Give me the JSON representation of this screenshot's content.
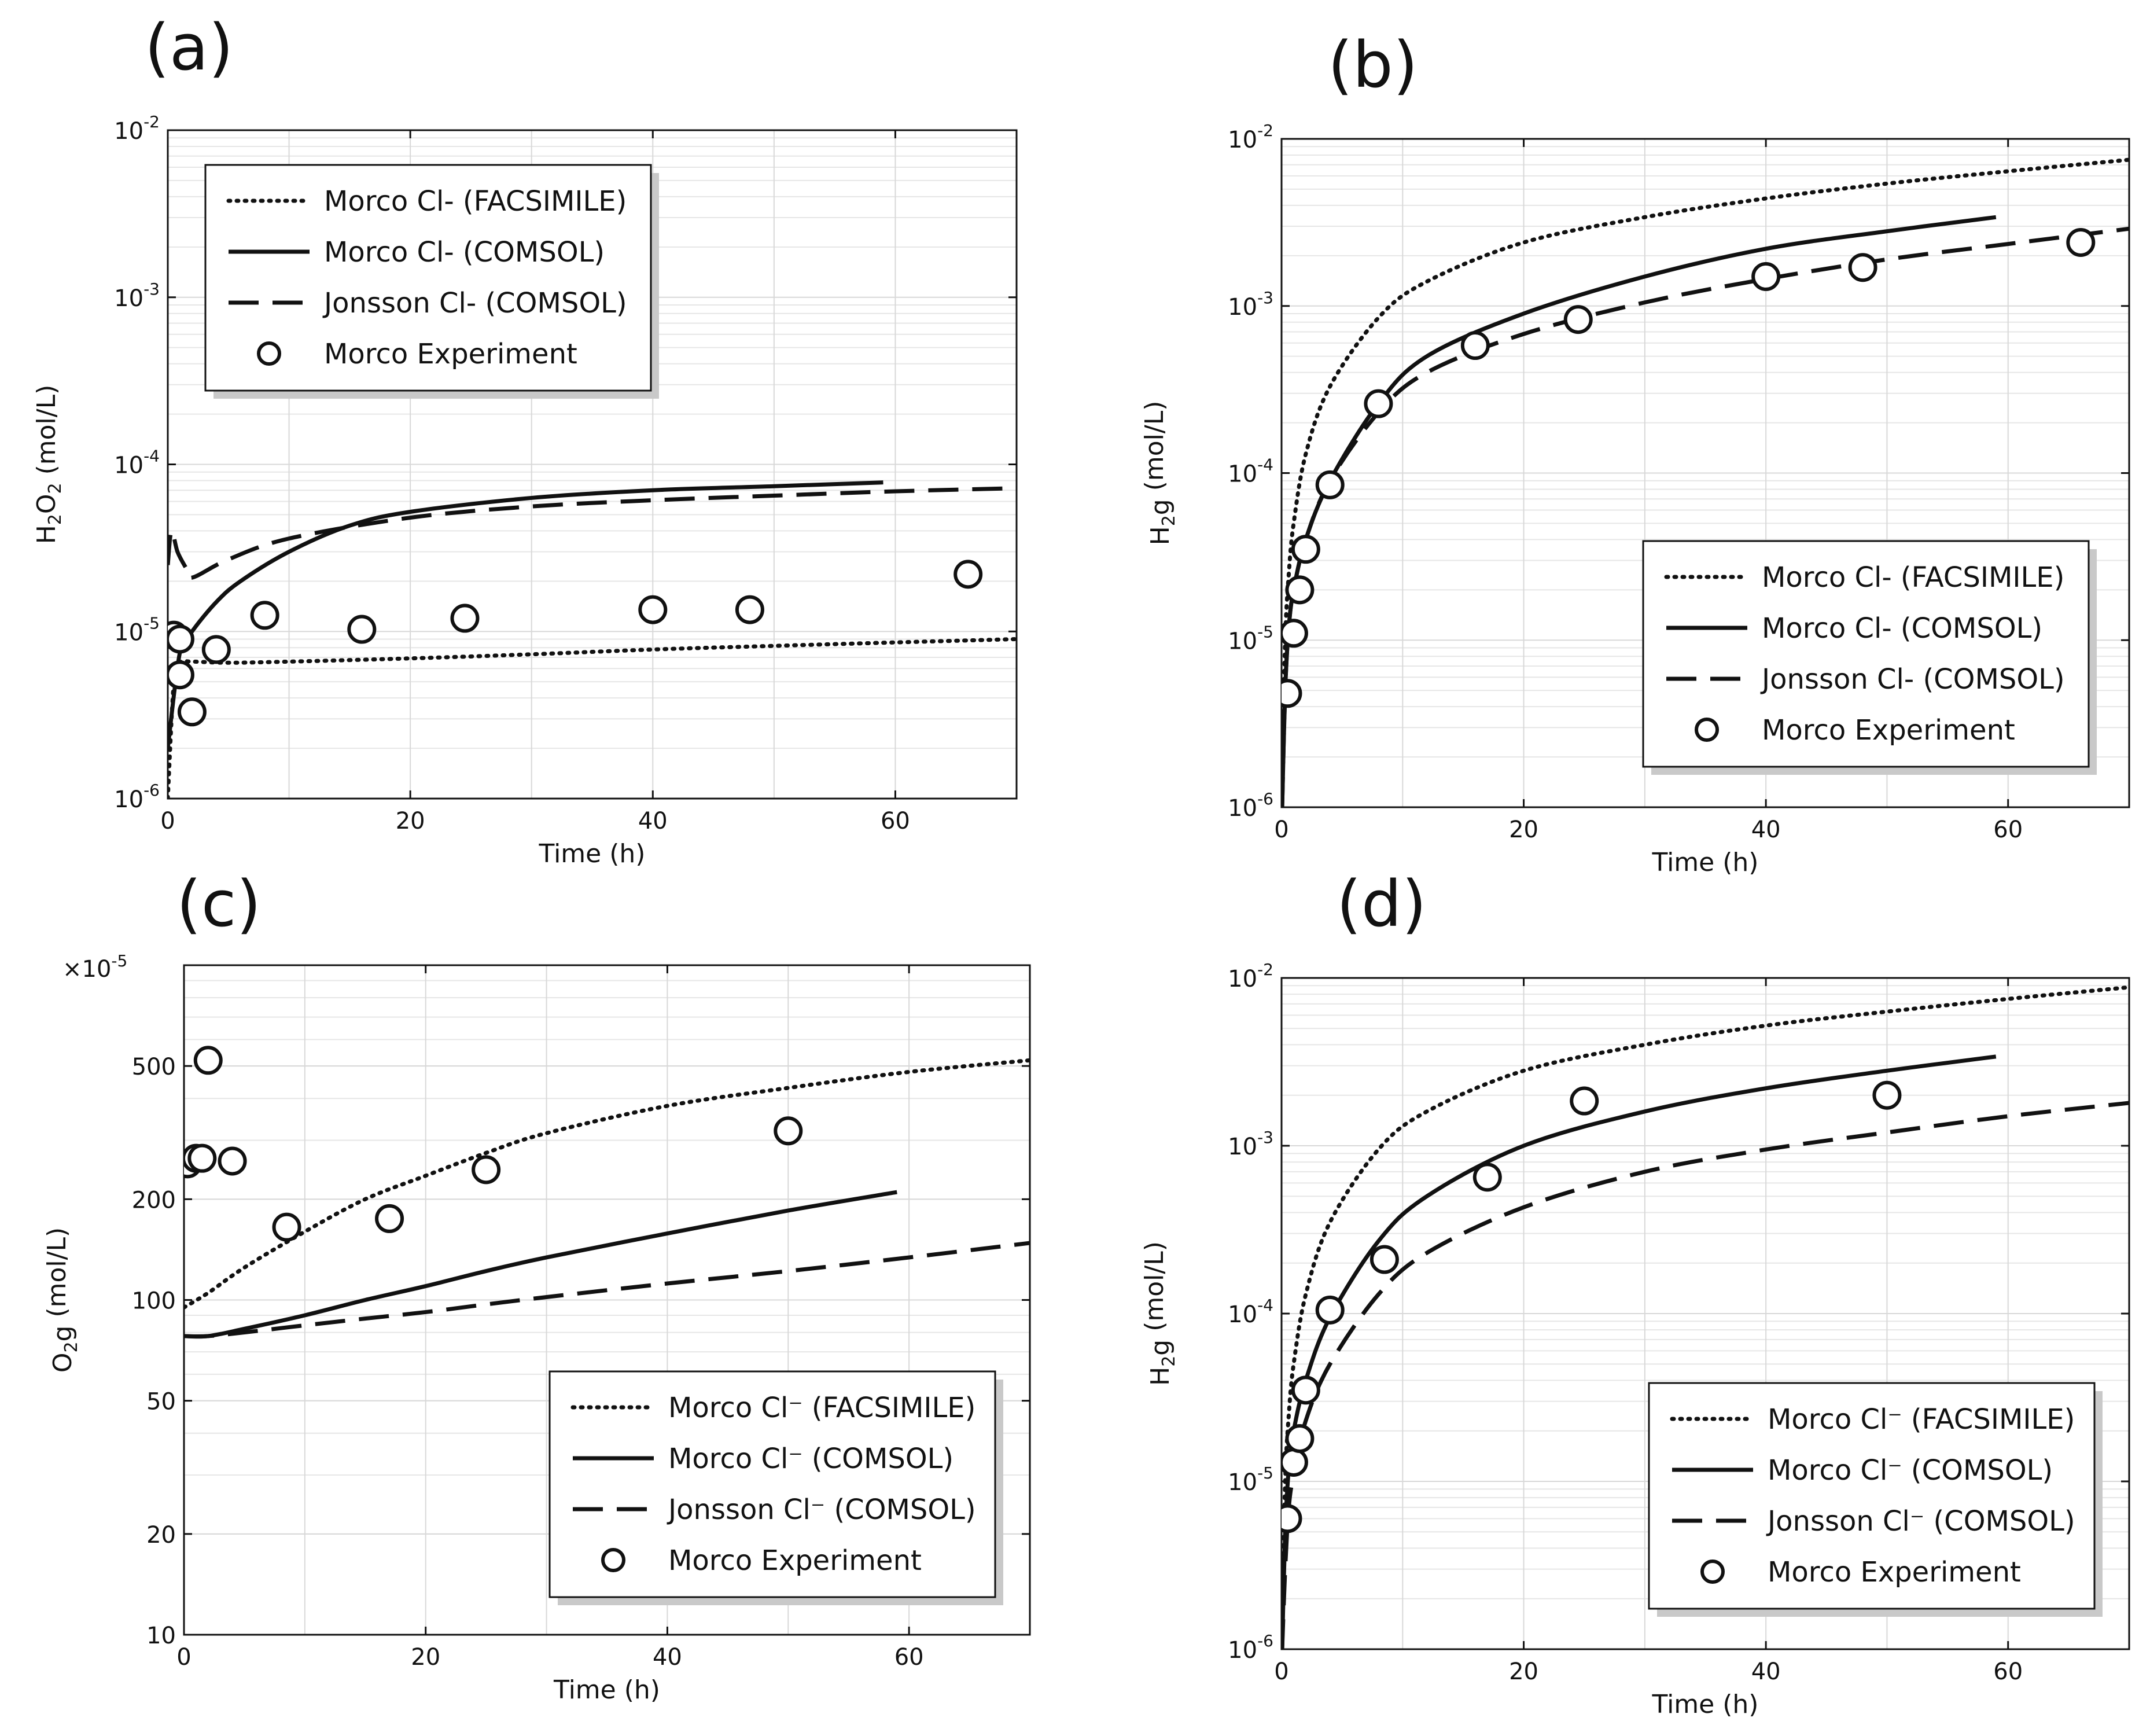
{
  "chart_data": [
    {
      "id": "a",
      "type": "line",
      "panel_label": "(a)",
      "xlabel": "Time (h)",
      "ylabel_main": "H",
      "ylabel_sub1": "2",
      "ylabel_mid": "O",
      "ylabel_sub2": "2",
      "ylabel_tail": " (mol/L)",
      "yscale": "log",
      "xlim": [
        0,
        70
      ],
      "ylim": [
        1e-06,
        0.01
      ],
      "xticks": [
        0,
        20,
        40,
        60
      ],
      "xtick_labels": [
        "0",
        "20",
        "40",
        "60"
      ],
      "yticks": [
        1e-06,
        1e-05,
        0.0001,
        0.001,
        0.01
      ],
      "ytick_labels": [
        [
          "10",
          "-6"
        ],
        [
          "10",
          "-5"
        ],
        [
          "10",
          "-4"
        ],
        [
          "10",
          "-3"
        ],
        [
          "10",
          "-2"
        ]
      ],
      "legend_position": "top-left",
      "series": [
        {
          "name": "Morco Cl- (FACSIMILE)",
          "style": "dotted",
          "x": [
            0,
            0.5,
            1,
            2,
            5,
            10,
            20,
            30,
            40,
            50,
            60,
            70
          ],
          "y": [
            1e-06,
            5e-06,
            6.5e-06,
            6.6e-06,
            6.5e-06,
            6.6e-06,
            6.9e-06,
            7.3e-06,
            7.8e-06,
            8.2e-06,
            8.6e-06,
            9e-06
          ]
        },
        {
          "name": "Morco Cl- (COMSOL)",
          "style": "solid",
          "x": [
            0,
            1,
            2,
            4,
            6,
            10,
            15,
            20,
            30,
            40,
            50,
            59
          ],
          "y": [
            2e-06,
            7.5e-06,
            1e-05,
            1.5e-05,
            2e-05,
            3e-05,
            4.3e-05,
            5.2e-05,
            6.3e-05,
            7e-05,
            7.4e-05,
            7.8e-05
          ]
        },
        {
          "name": "Jonsson Cl- (COMSOL)",
          "style": "dashed",
          "x": [
            0,
            0.3,
            0.8,
            1.5,
            2,
            5,
            10,
            20,
            30,
            40,
            50,
            60,
            70
          ],
          "y": [
            2.5e-05,
            4e-05,
            3e-05,
            2.4e-05,
            2.1e-05,
            2.7e-05,
            3.6e-05,
            4.8e-05,
            5.6e-05,
            6.1e-05,
            6.5e-05,
            6.9e-05,
            7.2e-05
          ]
        },
        {
          "name": "Morco Experiment",
          "style": "marker",
          "x": [
            0.5,
            1,
            1,
            2,
            4,
            8,
            16,
            24.5,
            40,
            48,
            66
          ],
          "y": [
            9.5e-06,
            9e-06,
            5.5e-06,
            3.3e-06,
            7.8e-06,
            1.25e-05,
            1.03e-05,
            1.2e-05,
            1.35e-05,
            1.35e-05,
            2.2e-05
          ]
        }
      ]
    },
    {
      "id": "b",
      "type": "line",
      "panel_label": "(b)",
      "xlabel": "Time (h)",
      "ylabel_main": "H",
      "ylabel_sub1": "2",
      "ylabel_mid": "g",
      "ylabel_sub2": "",
      "ylabel_tail": " (mol/L)",
      "yscale": "log",
      "xlim": [
        0,
        70
      ],
      "ylim": [
        1e-06,
        0.01
      ],
      "xticks": [
        0,
        20,
        40,
        60
      ],
      "xtick_labels": [
        "0",
        "20",
        "40",
        "60"
      ],
      "yticks": [
        1e-06,
        1e-05,
        0.0001,
        0.001,
        0.01
      ],
      "ytick_labels": [
        [
          "10",
          "-6"
        ],
        [
          "10",
          "-5"
        ],
        [
          "10",
          "-4"
        ],
        [
          "10",
          "-3"
        ],
        [
          "10",
          "-2"
        ]
      ],
      "legend_position": "bottom-right",
      "series": [
        {
          "name": "Morco Cl- (FACSIMILE)",
          "style": "dotted",
          "x": [
            0.05,
            0.3,
            0.6,
            1,
            2,
            4,
            8,
            12,
            20,
            30,
            40,
            50,
            60,
            70
          ],
          "y": [
            1.5e-06,
            1e-05,
            2.5e-05,
            5e-05,
            0.00013,
            0.00033,
            0.00085,
            0.0014,
            0.0024,
            0.0034,
            0.0044,
            0.0054,
            0.0064,
            0.0075
          ]
        },
        {
          "name": "Morco Cl- (COMSOL)",
          "style": "solid",
          "x": [
            0.05,
            0.3,
            0.6,
            1,
            2,
            4,
            8,
            12,
            20,
            30,
            40,
            50,
            59
          ],
          "y": [
            1e-06,
            5e-06,
            1.2e-05,
            2e-05,
            4e-05,
            9e-05,
            0.00026,
            0.0005,
            0.0009,
            0.0015,
            0.0022,
            0.0028,
            0.0034
          ]
        },
        {
          "name": "Jonsson Cl- (COMSOL)",
          "style": "dashed",
          "x": [
            0.05,
            0.3,
            0.6,
            1,
            2,
            4,
            8,
            12,
            20,
            30,
            40,
            50,
            60,
            70
          ],
          "y": [
            1e-06,
            5e-06,
            1.2e-05,
            2e-05,
            4e-05,
            9e-05,
            0.00023,
            0.0004,
            0.00068,
            0.00105,
            0.00145,
            0.0019,
            0.00235,
            0.0029
          ]
        },
        {
          "name": "Morco Experiment",
          "style": "marker",
          "x": [
            0.5,
            1,
            1.5,
            2,
            4,
            8,
            16,
            24.5,
            40,
            48,
            66
          ],
          "y": [
            4.8e-06,
            1.1e-05,
            2e-05,
            3.5e-05,
            8.5e-05,
            0.00026,
            0.00058,
            0.00083,
            0.0015,
            0.0017,
            0.0024
          ]
        }
      ]
    },
    {
      "id": "c",
      "type": "line",
      "panel_label": "(c)",
      "xlabel": "Time (h)",
      "ylabel_main": "O",
      "ylabel_sub1": "2",
      "ylabel_mid": "g",
      "ylabel_sub2": "",
      "ylabel_tail": " (mol/L)",
      "yscale": "log",
      "multiplier": [
        "×10",
        "-5"
      ],
      "xlim": [
        0,
        70
      ],
      "ylim": [
        10,
        1000
      ],
      "xticks": [
        0,
        20,
        40,
        60
      ],
      "xtick_labels": [
        "0",
        "20",
        "40",
        "60"
      ],
      "yticks": [
        10,
        20,
        50,
        100,
        200,
        500
      ],
      "ytick_labels": [
        [
          "10",
          ""
        ],
        [
          "20",
          ""
        ],
        [
          "50",
          ""
        ],
        [
          "100",
          ""
        ],
        [
          "200",
          ""
        ],
        [
          "500",
          ""
        ]
      ],
      "legend_position": "bottom-right",
      "series": [
        {
          "name": "Morco Cl⁻ (FACSIMILE)",
          "style": "dotted",
          "x": [
            0,
            2,
            5,
            10,
            15,
            20,
            25,
            30,
            40,
            50,
            60,
            70
          ],
          "y": [
            95,
            105,
            125,
            160,
            200,
            235,
            275,
            315,
            380,
            430,
            480,
            520
          ]
        },
        {
          "name": "Morco Cl⁻ (COMSOL)",
          "style": "solid",
          "x": [
            0,
            2,
            5,
            10,
            15,
            20,
            25,
            30,
            40,
            50,
            59
          ],
          "y": [
            78,
            78,
            82,
            90,
            100,
            110,
            122,
            134,
            158,
            185,
            210
          ]
        },
        {
          "name": "Jonsson Cl⁻ (COMSOL)",
          "style": "dashed",
          "x": [
            0,
            2,
            5,
            10,
            15,
            20,
            25,
            30,
            40,
            50,
            60,
            70
          ],
          "y": [
            78,
            78,
            80,
            84,
            88,
            92,
            97,
            102,
            112,
            122,
            134,
            148
          ]
        },
        {
          "name": "Morco Experiment",
          "style": "marker",
          "x": [
            0.3,
            1,
            1.5,
            2,
            4,
            8.5,
            17,
            25,
            50
          ],
          "y": [
            255,
            265,
            265,
            520,
            260,
            165,
            175,
            245,
            320
          ]
        }
      ]
    },
    {
      "id": "d",
      "type": "line",
      "panel_label": "(d)",
      "xlabel": "Time (h)",
      "ylabel_main": "H",
      "ylabel_sub1": "2",
      "ylabel_mid": "g",
      "ylabel_sub2": "",
      "ylabel_tail": " (mol/L)",
      "yscale": "log",
      "xlim": [
        0,
        70
      ],
      "ylim": [
        1e-06,
        0.01
      ],
      "xticks": [
        0,
        20,
        40,
        60
      ],
      "xtick_labels": [
        "0",
        "20",
        "40",
        "60"
      ],
      "yticks": [
        1e-06,
        1e-05,
        0.0001,
        0.001,
        0.01
      ],
      "ytick_labels": [
        [
          "10",
          "-6"
        ],
        [
          "10",
          "-5"
        ],
        [
          "10",
          "-4"
        ],
        [
          "10",
          "-3"
        ],
        [
          "10",
          "-2"
        ]
      ],
      "legend_position": "bottom-right",
      "series": [
        {
          "name": "Morco Cl⁻ (FACSIMILE)",
          "style": "dotted",
          "x": [
            0.05,
            0.3,
            0.6,
            1,
            2,
            4,
            8,
            12,
            20,
            30,
            40,
            50,
            60,
            70
          ],
          "y": [
            1.5e-06,
            1e-05,
            2.5e-05,
            5e-05,
            0.00013,
            0.00035,
            0.00095,
            0.0016,
            0.0028,
            0.004,
            0.0052,
            0.0063,
            0.0075,
            0.0088
          ]
        },
        {
          "name": "Morco Cl⁻ (COMSOL)",
          "style": "solid",
          "x": [
            0.05,
            0.3,
            0.6,
            1,
            2,
            4,
            8,
            12,
            20,
            30,
            40,
            50,
            59
          ],
          "y": [
            1e-06,
            5e-06,
            1.2e-05,
            2e-05,
            4e-05,
            9.5e-05,
            0.00027,
            0.0005,
            0.001,
            0.0016,
            0.0022,
            0.0028,
            0.0034
          ]
        },
        {
          "name": "Jonsson Cl⁻ (COMSOL)",
          "style": "dashed",
          "x": [
            0.05,
            0.3,
            0.6,
            1,
            2,
            4,
            8,
            12,
            20,
            30,
            40,
            50,
            60,
            70
          ],
          "y": [
            1e-06,
            3e-06,
            7e-06,
            1.1e-05,
            2.3e-05,
            5e-05,
            0.00013,
            0.00023,
            0.00043,
            0.0007,
            0.00095,
            0.0012,
            0.0015,
            0.0018
          ]
        },
        {
          "name": "Morco Experiment",
          "style": "marker",
          "x": [
            0.5,
            1,
            1.5,
            2,
            4,
            8.5,
            17,
            25,
            50
          ],
          "y": [
            6e-06,
            1.3e-05,
            1.8e-05,
            3.5e-05,
            0.000105,
            0.00021,
            0.00065,
            0.00185,
            0.002
          ]
        }
      ]
    }
  ]
}
